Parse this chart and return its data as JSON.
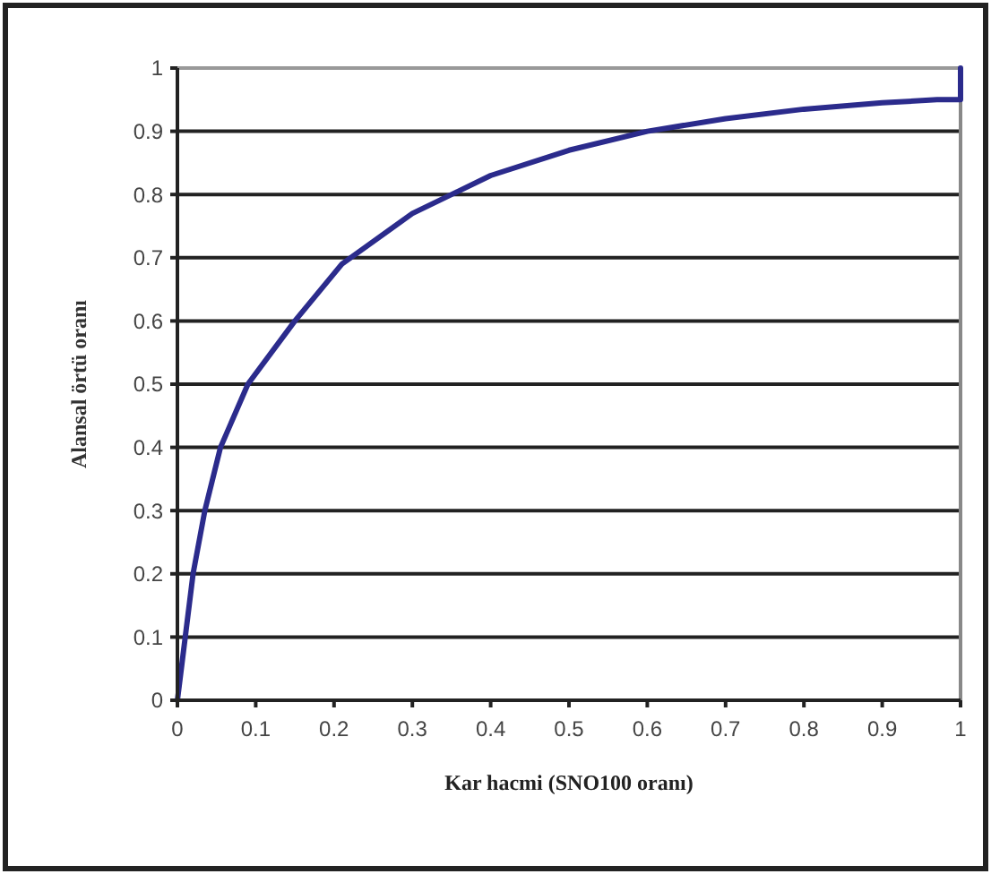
{
  "chart_data": {
    "type": "line",
    "xlabel": "Kar hacmi (SNO100 oranı)",
    "ylabel": "Alansal örtü oranı",
    "x": [
      0,
      0.01,
      0.02,
      0.035,
      0.055,
      0.09,
      0.15,
      0.21,
      0.3,
      0.4,
      0.5,
      0.6,
      0.7,
      0.8,
      0.9,
      0.97,
      1,
      1
    ],
    "series": [
      {
        "color": "#2b2b8c",
        "values": [
          0,
          0.1,
          0.2,
          0.3,
          0.4,
          0.5,
          0.6,
          0.69,
          0.77,
          0.83,
          0.87,
          0.9,
          0.92,
          0.935,
          0.945,
          0.95,
          0.95,
          1
        ]
      }
    ],
    "xlim": [
      0,
      1
    ],
    "ylim": [
      0,
      1
    ],
    "xticks": [
      0,
      0.1,
      0.2,
      0.3,
      0.4,
      0.5,
      0.6,
      0.7,
      0.8,
      0.9,
      1
    ],
    "yticks": [
      0,
      0.1,
      0.2,
      0.3,
      0.4,
      0.5,
      0.6,
      0.7,
      0.8,
      0.9,
      1
    ],
    "grid": "y",
    "marker": "none",
    "line_style": "solid"
  }
}
